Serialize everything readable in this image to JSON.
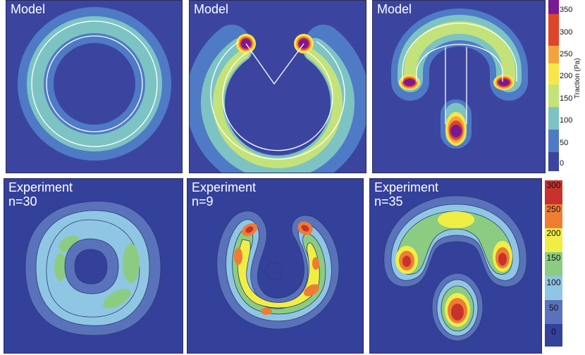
{
  "chart_data": [
    {
      "type": "heatmap",
      "panel": "model-ring",
      "title": "Model",
      "colorbar_label": "Traction (Pa)",
      "colorbar_ticks": [
        0,
        50,
        100,
        150,
        200,
        250,
        300,
        350
      ],
      "max_traction": 120
    },
    {
      "type": "heatmap",
      "panel": "model-c",
      "title": "Model",
      "colorbar_label": "Traction (Pa)",
      "colorbar_ticks": [
        0,
        50,
        100,
        150,
        200,
        250,
        300,
        350
      ],
      "max_traction": 350
    },
    {
      "type": "heatmap",
      "panel": "model-arch",
      "title": "Model",
      "colorbar_label": "Traction (Pa)",
      "colorbar_ticks": [
        0,
        50,
        100,
        150,
        200,
        250,
        300,
        350
      ],
      "max_traction": 350
    },
    {
      "type": "heatmap",
      "panel": "experiment-ring",
      "title": "Experiment",
      "n_label": "n=30",
      "colorbar_ticks": [
        0,
        50,
        100,
        150,
        200,
        250,
        300
      ],
      "max_traction": 140
    },
    {
      "type": "heatmap",
      "panel": "experiment-c",
      "title": "Experiment",
      "n_label": "n=9",
      "colorbar_ticks": [
        0,
        50,
        100,
        150,
        200,
        250,
        300
      ],
      "max_traction": 270
    },
    {
      "type": "heatmap",
      "panel": "experiment-arch",
      "title": "Experiment",
      "n_label": "n=35",
      "colorbar_ticks": [
        0,
        50,
        100,
        150,
        200,
        250,
        300
      ],
      "max_traction": 300
    }
  ],
  "colors": {
    "background": "#3a4aa5",
    "model_levels": [
      "#3b45a0",
      "#4f7ac6",
      "#7dc3c4",
      "#c4e27a",
      "#f6e64a",
      "#f4a33c",
      "#e0452c",
      "#7a1a92"
    ],
    "experiment_levels": [
      "#34419b",
      "#5a72bb",
      "#8fc6e4",
      "#8ccc82",
      "#f0ee45",
      "#ee7d33",
      "#c8322c"
    ]
  },
  "colorbar_model": {
    "label": "Traction (Pa)",
    "ticks": [
      "350",
      "300",
      "250",
      "200",
      "150",
      "100",
      "50",
      "0"
    ]
  },
  "colorbar_experiment": {
    "ticks": [
      "300",
      "250",
      "200",
      "150",
      "100",
      "50",
      "0"
    ]
  }
}
